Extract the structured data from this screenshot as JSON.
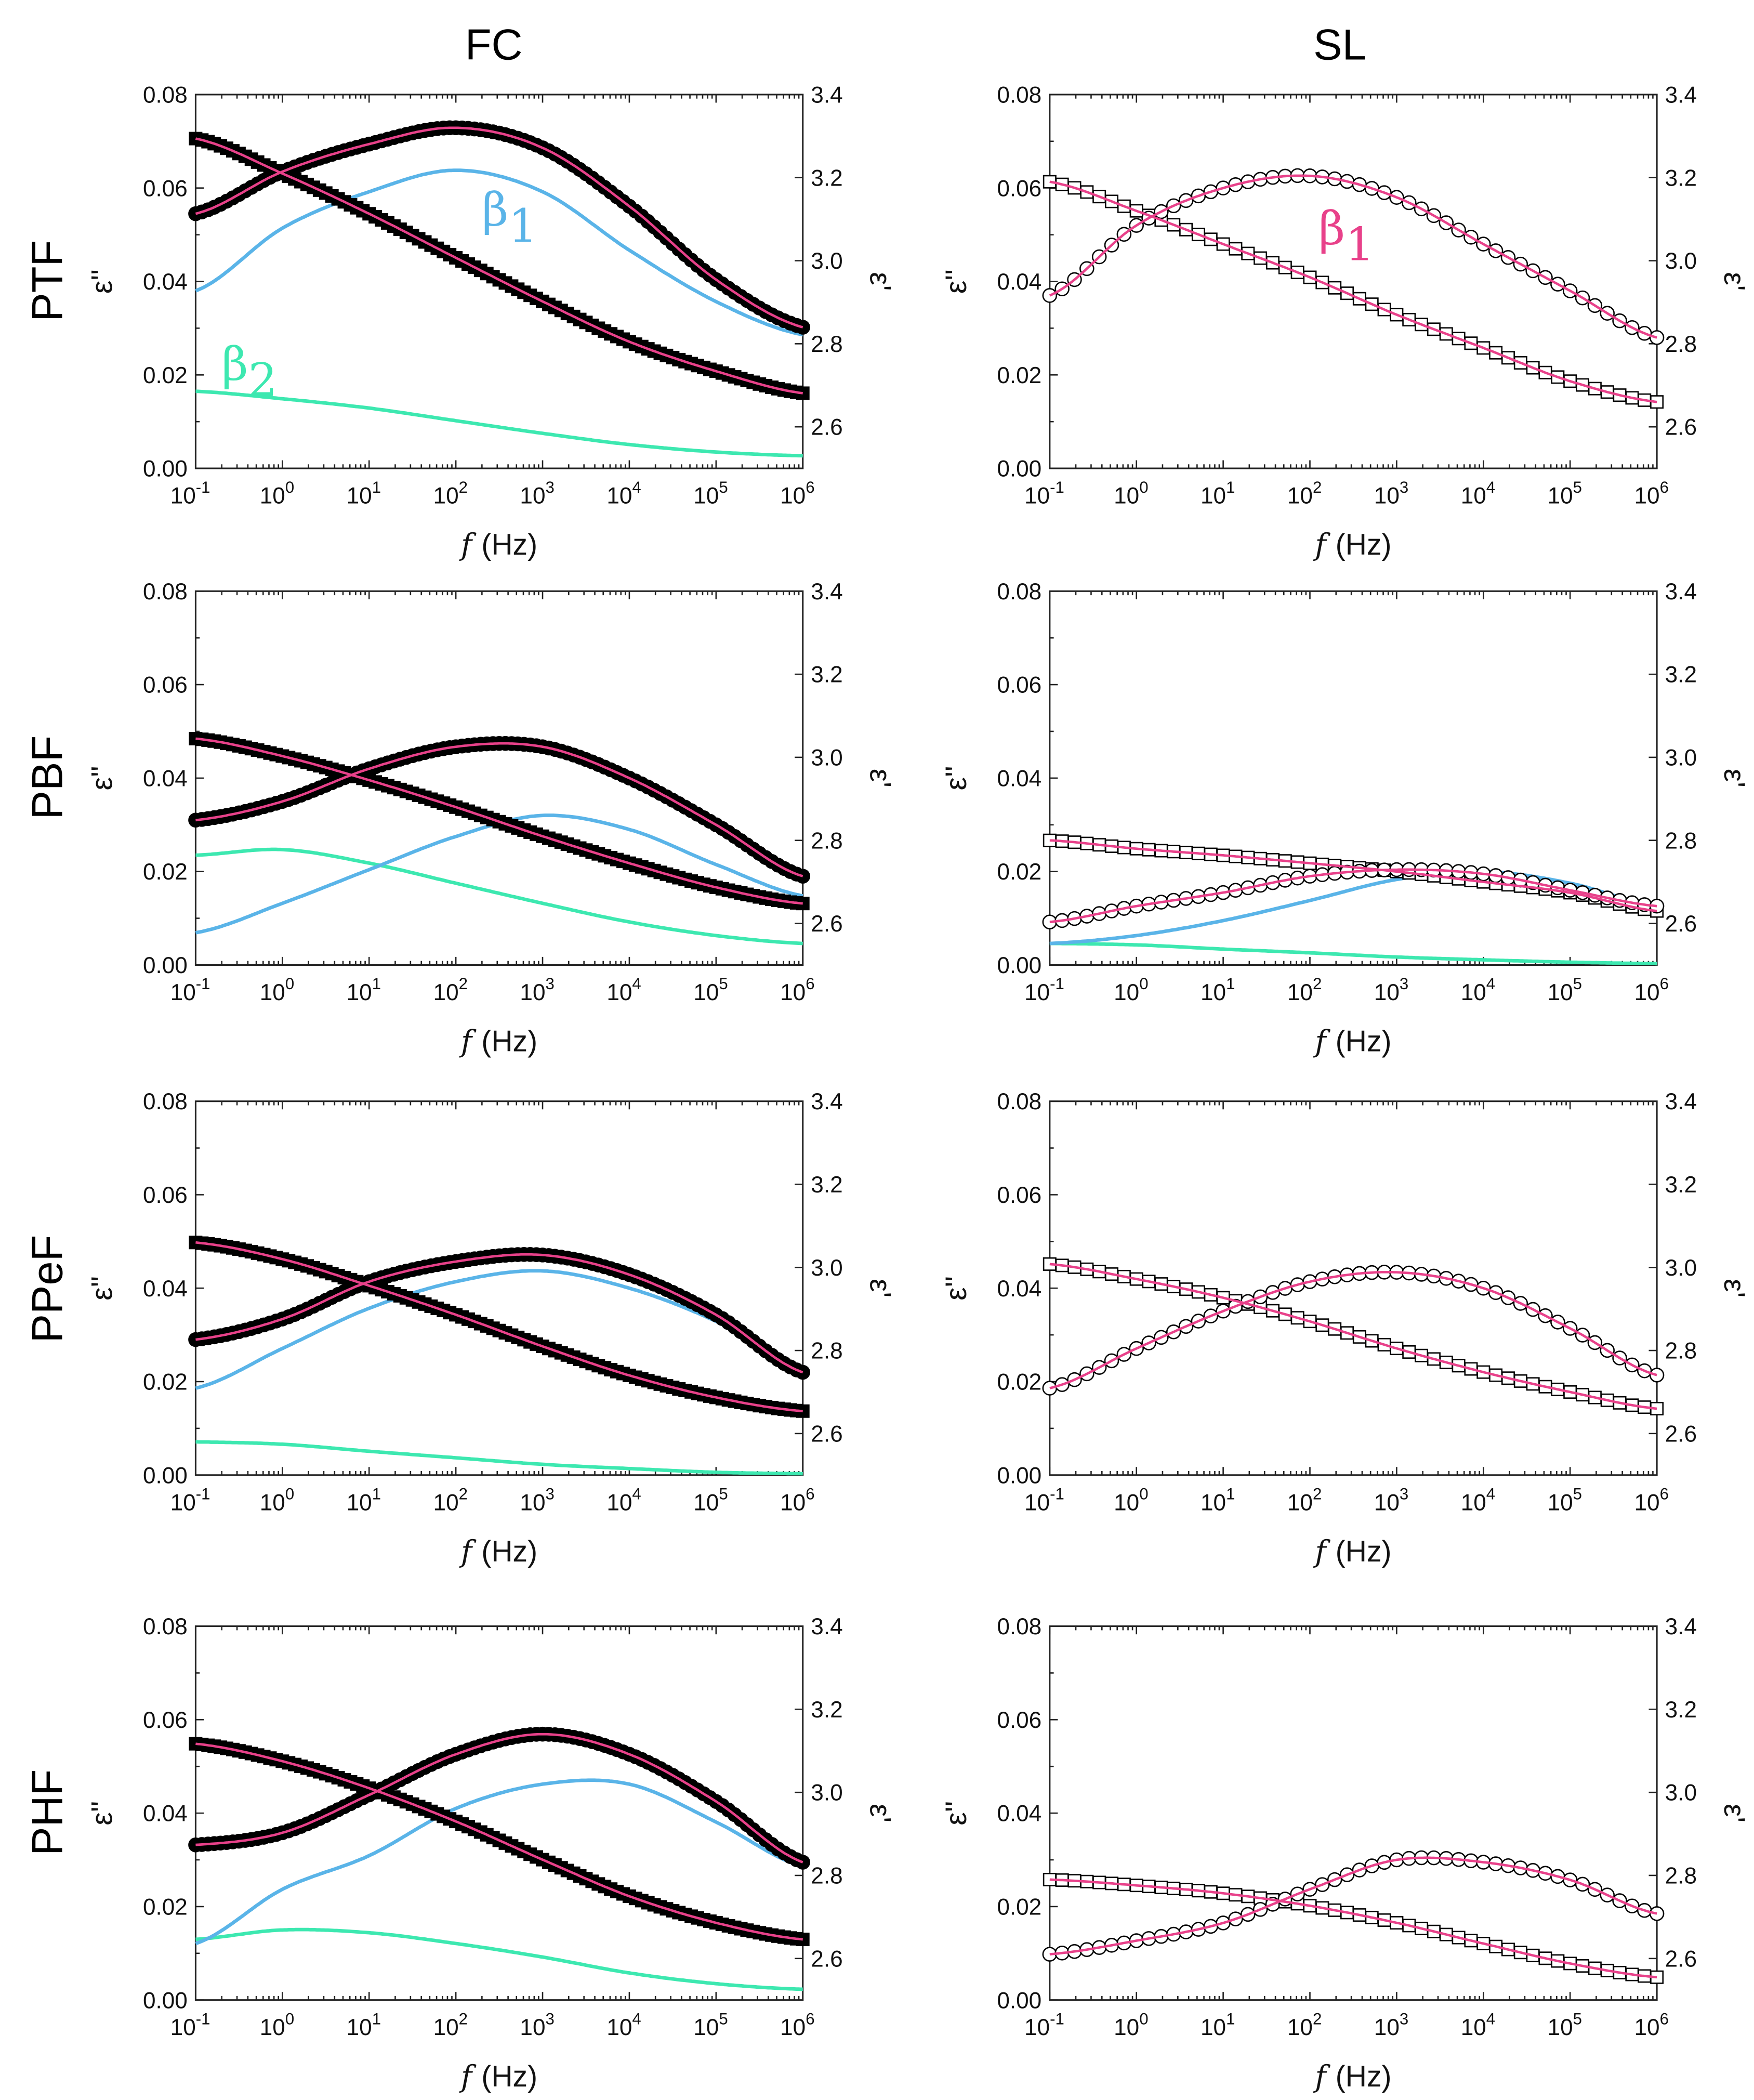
{
  "column_titles": [
    "FC",
    "SL"
  ],
  "row_labels": [
    "PTF",
    "PBF",
    "PPeF",
    "PHF"
  ],
  "colors": {
    "fit": "#e8418a",
    "beta1": "#5ab4e8",
    "beta2": "#3de8b0",
    "data": "#000000"
  },
  "chart_data": {
    "type": "line",
    "layout": "4x2 grid of panels",
    "xlabel_italic": "f",
    "xlabel_unit": "(Hz)",
    "ylabel_left": "ε''",
    "ylabel_right": "ε'",
    "xscale": "log",
    "x_tick_base": "10",
    "x_tick_exponents": [
      "-1",
      "0",
      "1",
      "2",
      "3",
      "4",
      "5",
      "6"
    ],
    "xlim_log10": [
      -1,
      6
    ],
    "ylim_left": [
      0,
      0.08
    ],
    "y_ticks_left": [
      "0.00",
      "0.02",
      "0.04",
      "0.06",
      "0.08"
    ],
    "ylim_right": [
      2.5,
      3.4
    ],
    "y_ticks_right": [
      "2.6",
      "2.8",
      "3.0",
      "3.2",
      "3.4"
    ],
    "x_log10": [
      -1,
      0,
      1,
      2,
      3,
      4,
      5,
      6
    ],
    "panels": [
      {
        "row": "PTF",
        "col": "FC",
        "marker_style": "filled",
        "loss": [
          0.0545,
          0.0635,
          0.0694,
          0.0729,
          0.0686,
          0.0561,
          0.0404,
          0.0302
        ],
        "storage": [
          3.294,
          3.21,
          3.113,
          3.007,
          2.902,
          2.805,
          2.734,
          2.681
        ],
        "beta1": [
          0.038,
          0.0514,
          0.0592,
          0.0638,
          0.0592,
          0.0467,
          0.0357,
          0.0286
        ],
        "beta2": [
          0.0165,
          0.0149,
          0.0129,
          0.0102,
          0.0075,
          0.0051,
          0.0035,
          0.0027
        ],
        "annotations": [
          {
            "text": "β",
            "sub": "1",
            "color": "beta1",
            "at": [
              2.3,
              0.052
            ]
          },
          {
            "text": "β",
            "sub": "2",
            "color": "beta2",
            "at": [
              -0.7,
              0.019
            ]
          }
        ]
      },
      {
        "row": "PTF",
        "col": "SL",
        "marker_style": "open",
        "loss": [
          0.037,
          0.052,
          0.06,
          0.0626,
          0.058,
          0.048,
          0.038,
          0.028
        ],
        "storage": [
          3.19,
          3.12,
          3.04,
          2.96,
          2.87,
          2.79,
          2.71,
          2.66
        ],
        "annotations": [
          {
            "text": "β",
            "sub": "1",
            "color": "fit",
            "at": [
              2.1,
              0.048
            ]
          }
        ]
      },
      {
        "row": "PBF",
        "col": "FC",
        "marker_style": "filled",
        "loss": [
          0.031,
          0.035,
          0.042,
          0.0467,
          0.0467,
          0.04,
          0.03,
          0.019
        ],
        "storage": [
          3.045,
          3.003,
          2.945,
          2.88,
          2.81,
          2.745,
          2.687,
          2.648
        ],
        "beta1": [
          0.0069,
          0.0132,
          0.0204,
          0.0275,
          0.032,
          0.029,
          0.0215,
          0.0148
        ],
        "beta2": [
          0.0235,
          0.0247,
          0.0218,
          0.0175,
          0.0132,
          0.0092,
          0.0063,
          0.0046
        ]
      },
      {
        "row": "PBF",
        "col": "SL",
        "marker_style": "open",
        "loss": [
          0.0092,
          0.0126,
          0.0155,
          0.019,
          0.0204,
          0.0195,
          0.016,
          0.0126
        ],
        "storage": [
          2.8,
          2.78,
          2.764,
          2.745,
          2.725,
          2.7,
          2.674,
          2.63
        ],
        "beta1": [
          0.0046,
          0.0063,
          0.0095,
          0.0138,
          0.0183,
          0.02,
          0.0175,
          0.0126
        ],
        "beta2": [
          0.0046,
          0.0043,
          0.0034,
          0.0026,
          0.0017,
          0.0011,
          0.0006,
          0.0003
        ]
      },
      {
        "row": "PPeF",
        "col": "FC",
        "marker_style": "filled",
        "loss": [
          0.029,
          0.0334,
          0.0414,
          0.0457,
          0.0471,
          0.0429,
          0.0343,
          0.022
        ],
        "storage": [
          3.06,
          3.02,
          2.956,
          2.886,
          2.81,
          2.74,
          2.687,
          2.654
        ],
        "beta1": [
          0.0186,
          0.0271,
          0.0357,
          0.0414,
          0.0437,
          0.04,
          0.0329,
          0.0229
        ],
        "beta2": [
          0.0071,
          0.0066,
          0.0051,
          0.0037,
          0.0023,
          0.0014,
          0.0006,
          0.0003
        ]
      },
      {
        "row": "PPeF",
        "col": "SL",
        "marker_style": "open",
        "loss": [
          0.0186,
          0.0271,
          0.0351,
          0.0414,
          0.0434,
          0.04,
          0.0314,
          0.0214
        ],
        "storage": [
          3.008,
          2.972,
          2.927,
          2.87,
          2.805,
          2.748,
          2.7,
          2.66
        ]
      },
      {
        "row": "PHF",
        "col": "FC",
        "marker_style": "filled",
        "loss": [
          0.0332,
          0.0358,
          0.0439,
          0.0526,
          0.0569,
          0.0526,
          0.0425,
          0.0295
        ],
        "storage": [
          3.117,
          3.075,
          3.01,
          2.93,
          2.838,
          2.75,
          2.686,
          2.646
        ],
        "beta1": [
          0.0121,
          0.0237,
          0.0309,
          0.041,
          0.0462,
          0.0462,
          0.0381,
          0.0286
        ],
        "beta2": [
          0.013,
          0.015,
          0.0144,
          0.0121,
          0.0092,
          0.0058,
          0.0035,
          0.0023
        ]
      },
      {
        "row": "PHF",
        "col": "SL",
        "marker_style": "open",
        "loss": [
          0.0098,
          0.0127,
          0.0165,
          0.0237,
          0.03,
          0.0295,
          0.0257,
          0.0185
        ],
        "storage": [
          2.79,
          2.776,
          2.757,
          2.727,
          2.686,
          2.636,
          2.588,
          2.555
        ]
      }
    ]
  }
}
